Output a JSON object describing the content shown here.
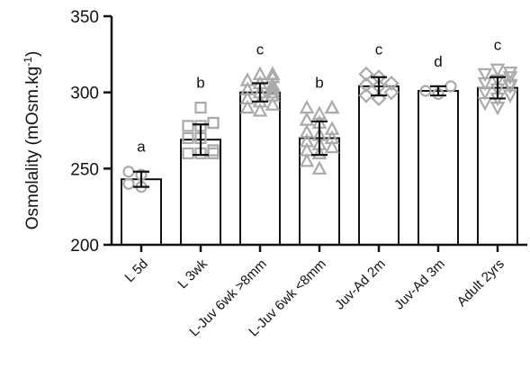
{
  "chart_data": {
    "type": "bar",
    "ylabel": "Osmolality (mOsm.kg",
    "ylabel_sup": "-1",
    "ylabel_close": ")",
    "ylim": [
      200,
      350
    ],
    "yticks": [
      {
        "value": 200,
        "label": "200"
      },
      {
        "value": 250,
        "label": "250"
      },
      {
        "value": 300,
        "label": "300"
      },
      {
        "value": 350,
        "label": "350"
      }
    ],
    "categories": [
      "L 5d",
      "L 3wk",
      "L-Juv 6wk >8mm",
      "L-Juv 6wk <8mm",
      "Juv-Ad 2m",
      "Juv-Ad 3m",
      "Adult 2yrs"
    ],
    "values": [
      243,
      269,
      300,
      270,
      304,
      301,
      303
    ],
    "sd": [
      5,
      10,
      6,
      11,
      6,
      3,
      7
    ],
    "significance": [
      "a",
      "b",
      "c",
      "b",
      "c",
      "d",
      "c"
    ],
    "markers": [
      "circle",
      "square",
      "triangle-up",
      "triangle-up",
      "diamond",
      "circle",
      "triangle-down"
    ],
    "points": [
      [
        238,
        240,
        246,
        248
      ],
      [
        260,
        260,
        260,
        260,
        262,
        262,
        270,
        270,
        278,
        278,
        280,
        280,
        290
      ],
      [
        288,
        290,
        292,
        294,
        296,
        298,
        298,
        300,
        300,
        302,
        302,
        304,
        305,
        306,
        308,
        310,
        312,
        312,
        312
      ],
      [
        250,
        255,
        260,
        262,
        264,
        266,
        268,
        270,
        272,
        274,
        276,
        280,
        282,
        286,
        290,
        290,
        290
      ],
      [
        296,
        298,
        300,
        304,
        305,
        306,
        310,
        312
      ],
      [
        299,
        301,
        304
      ],
      [
        290,
        293,
        296,
        298,
        300,
        302,
        304,
        305,
        306,
        308,
        310,
        312,
        313,
        315
      ]
    ],
    "bar_color": "#ffffff",
    "edge_color": "#111111",
    "marker_color": "#aaaaaa"
  }
}
